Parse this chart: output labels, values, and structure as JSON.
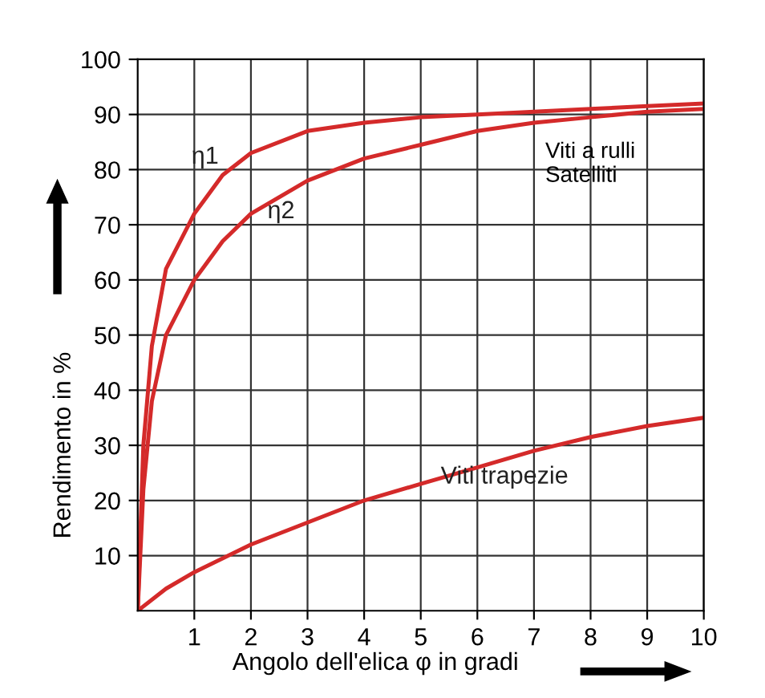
{
  "chart_data": {
    "type": "line",
    "xlabel": "Angolo dell'elica φ in gradi",
    "ylabel": "Rendimento in %",
    "xlim": [
      0,
      10
    ],
    "ylim": [
      0,
      100
    ],
    "xticks": [
      1,
      2,
      3,
      4,
      5,
      6,
      7,
      8,
      9,
      10
    ],
    "yticks": [
      10,
      20,
      30,
      40,
      50,
      60,
      70,
      80,
      90,
      100
    ],
    "grid": true,
    "legend": false,
    "marker": "none",
    "line_style": "solid",
    "series": [
      {
        "name": "η1",
        "color": "#d42a2a",
        "x": [
          0,
          0.1,
          0.25,
          0.5,
          1,
          1.5,
          2,
          3,
          4,
          5,
          6,
          7,
          8,
          9,
          10
        ],
        "values": [
          0,
          30,
          48,
          62,
          72,
          79,
          83,
          87,
          88.5,
          89.5,
          90,
          90.5,
          91,
          91.5,
          92
        ]
      },
      {
        "name": "η2",
        "color": "#d42a2a",
        "x": [
          0,
          0.1,
          0.25,
          0.5,
          1,
          1.5,
          2,
          3,
          4,
          5,
          6,
          7,
          8,
          9,
          10
        ],
        "values": [
          0,
          22,
          38,
          50,
          60,
          67,
          72,
          78,
          82,
          84.5,
          87,
          88.5,
          89.5,
          90.5,
          91
        ]
      },
      {
        "name": "Viti trapezie",
        "color": "#d42a2a",
        "x": [
          0,
          0.5,
          1,
          2,
          3,
          4,
          5,
          6,
          7,
          8,
          9,
          10
        ],
        "values": [
          0,
          4,
          7,
          12,
          16,
          20,
          23,
          26,
          29,
          31.5,
          33.5,
          35
        ]
      }
    ],
    "annotations": [
      "Viti a rulli\nSatelliti"
    ]
  }
}
